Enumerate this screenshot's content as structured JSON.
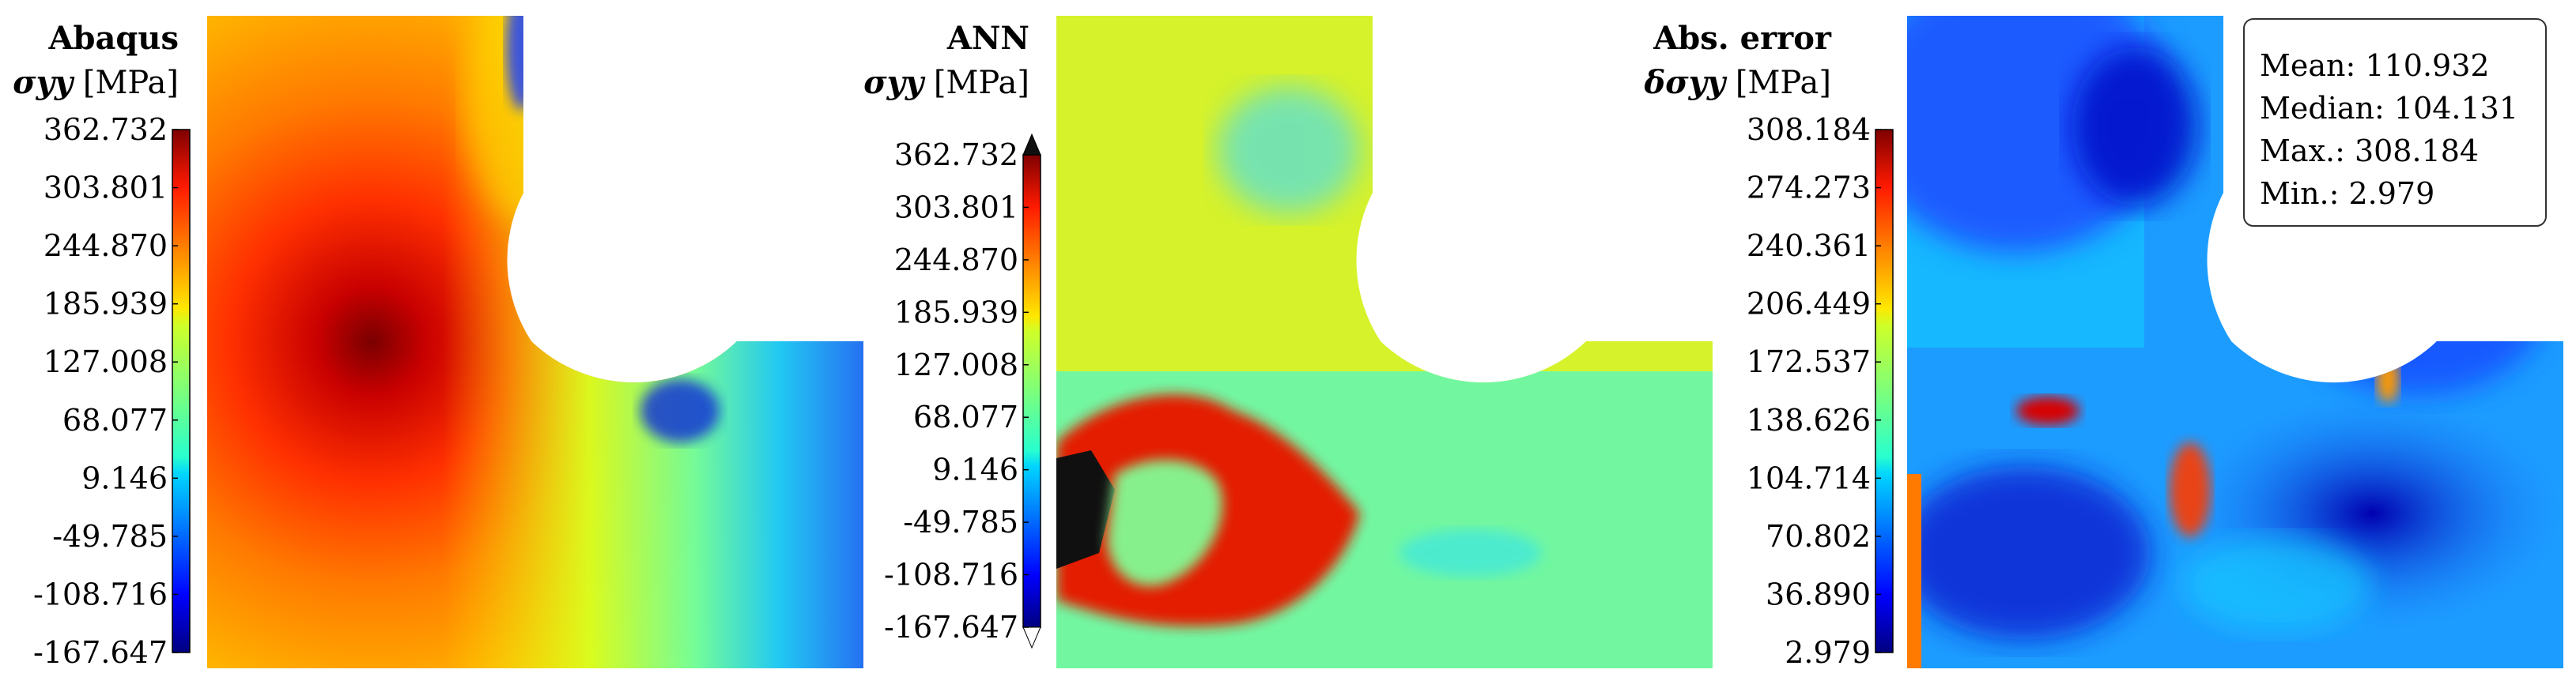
{
  "chart_data": [
    {
      "type": "heatmap",
      "title": "Abaqus",
      "quantity": "σyy",
      "unit": "[MPa]",
      "colormap": "jet",
      "range": [
        -167.647,
        362.732
      ],
      "ticks": [
        "362.732",
        "303.801",
        "244.870",
        "185.939",
        "127.008",
        "68.077",
        "9.146",
        "-49.785",
        "-108.716",
        "-167.647"
      ]
    },
    {
      "type": "heatmap",
      "title": "ANN",
      "quantity": "σyy",
      "unit": "[MPa]",
      "colormap": "jet",
      "colorbar_extend": "both",
      "range": [
        -167.647,
        362.732
      ],
      "ticks": [
        "362.732",
        "303.801",
        "244.870",
        "185.939",
        "127.008",
        "68.077",
        "9.146",
        "-49.785",
        "-108.716",
        "-167.647"
      ]
    },
    {
      "type": "heatmap",
      "title": "Abs. error",
      "quantity": "δσyy",
      "unit": "[MPa]",
      "colormap": "jet",
      "range": [
        2.979,
        308.184
      ],
      "ticks": [
        "308.184",
        "274.273",
        "240.361",
        "206.449",
        "172.537",
        "138.626",
        "104.714",
        "70.802",
        "36.890",
        "2.979"
      ],
      "stats": {
        "mean": "Mean: 110.932",
        "median": "Median: 104.131",
        "max": "Max.: 308.184",
        "min": "Min.: 2.979"
      }
    }
  ]
}
